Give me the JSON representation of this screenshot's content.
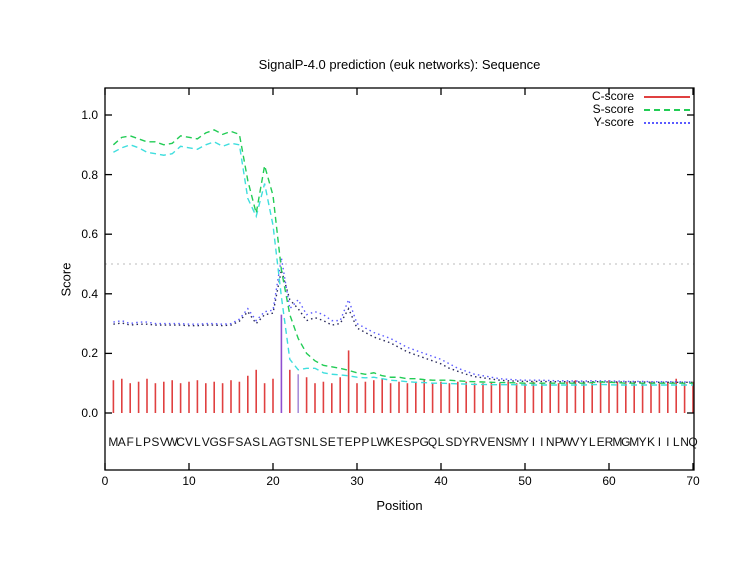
{
  "header": {
    "title": "SignalP-4.0 prediction (euk networks): Sequence"
  },
  "axes": {
    "xlabel": "Position",
    "ylabel": "Score",
    "xticks": [
      0,
      10,
      20,
      30,
      40,
      50,
      60,
      70
    ],
    "yticks": [
      "0.0",
      "0.2",
      "0.4",
      "0.6",
      "0.8",
      "1.0"
    ]
  },
  "legend": {
    "entries": [
      {
        "label": "C-score",
        "color": "#e04040",
        "line_style": "solid"
      },
      {
        "label": "S-score",
        "color": "#22cc55",
        "line_style": "dashed"
      },
      {
        "label": "Y-score",
        "color": "#5b5bff",
        "line_style": "dotted"
      }
    ]
  },
  "colors": {
    "c_score": "#e04040",
    "s_score_green": "#22cc55",
    "s_score_cyan": "#3fdede",
    "y_score_blue": "#5b5bff",
    "y_score_navy": "#28285a",
    "threshold_line": "#bbbbbb",
    "axis": "#000000"
  },
  "chart_data": {
    "type": "line",
    "title": "SignalP-4.0 prediction (euk networks): Sequence",
    "xlabel": "Position",
    "ylabel": "Score",
    "xlim": [
      0,
      70
    ],
    "ylim": [
      0.0,
      1.0
    ],
    "threshold": 0.5,
    "grid": false,
    "legend_position": "top-right",
    "sequence": "MAFLPSVWCVLVGSFSASLAGTSNLSETEPPLWKESPGQLSDYRVENSMYIINPWVYLERMGMYKIILNQ",
    "positions_start": 1,
    "series": [
      {
        "name": "C-score",
        "style": "impulse",
        "color": "#e04040",
        "color_overrides": {
          "21": "#8f4fd0",
          "23": "#a98fd9"
        },
        "values": [
          0.11,
          0.115,
          0.1,
          0.105,
          0.115,
          0.1,
          0.105,
          0.11,
          0.1,
          0.105,
          0.11,
          0.1,
          0.105,
          0.1,
          0.11,
          0.105,
          0.125,
          0.145,
          0.1,
          0.115,
          0.33,
          0.145,
          0.13,
          0.12,
          0.1,
          0.105,
          0.1,
          0.12,
          0.21,
          0.1,
          0.105,
          0.11,
          0.115,
          0.1,
          0.105,
          0.1,
          0.105,
          0.11,
          0.1,
          0.105,
          0.1,
          0.105,
          0.105,
          0.1,
          0.1,
          0.105,
          0.1,
          0.105,
          0.1,
          0.1,
          0.105,
          0.1,
          0.105,
          0.1,
          0.105,
          0.11,
          0.105,
          0.1,
          0.105,
          0.11,
          0.105,
          0.1,
          0.105,
          0.1,
          0.105,
          0.1,
          0.105,
          0.115,
          0.1,
          0.105
        ]
      },
      {
        "name": "S-score",
        "style": "dashed",
        "color": "#22cc55",
        "values": [
          0.9,
          0.925,
          0.93,
          0.92,
          0.91,
          0.91,
          0.9,
          0.905,
          0.93,
          0.925,
          0.92,
          0.94,
          0.95,
          0.935,
          0.945,
          0.935,
          0.78,
          0.67,
          0.83,
          0.73,
          0.48,
          0.33,
          0.25,
          0.2,
          0.175,
          0.16,
          0.155,
          0.15,
          0.143,
          0.135,
          0.13,
          0.135,
          0.125,
          0.12,
          0.12,
          0.115,
          0.115,
          0.112,
          0.11,
          0.11,
          0.11,
          0.108,
          0.106,
          0.105,
          0.104,
          0.103,
          0.102,
          0.102,
          0.101,
          0.1,
          0.1,
          0.1,
          0.1,
          0.1,
          0.1,
          0.1,
          0.1,
          0.102,
          0.104,
          0.103,
          0.102,
          0.1,
          0.1,
          0.1,
          0.1,
          0.1,
          0.1,
          0.1,
          0.1,
          0.1
        ]
      },
      {
        "name": "S-score-alt",
        "style": "dashed",
        "color": "#3fdede",
        "values": [
          0.875,
          0.89,
          0.9,
          0.89,
          0.875,
          0.87,
          0.865,
          0.87,
          0.895,
          0.89,
          0.885,
          0.9,
          0.91,
          0.895,
          0.905,
          0.9,
          0.72,
          0.66,
          0.77,
          0.63,
          0.39,
          0.18,
          0.145,
          0.15,
          0.15,
          0.135,
          0.13,
          0.128,
          0.125,
          0.12,
          0.118,
          0.12,
          0.115,
          0.11,
          0.108,
          0.105,
          0.103,
          0.102,
          0.1,
          0.1,
          0.099,
          0.098,
          0.097,
          0.096,
          0.096,
          0.095,
          0.095,
          0.095,
          0.095,
          0.094,
          0.094,
          0.094,
          0.094,
          0.094,
          0.094,
          0.094,
          0.094,
          0.095,
          0.096,
          0.095,
          0.094,
          0.094,
          0.094,
          0.094,
          0.094,
          0.094,
          0.094,
          0.094,
          0.094,
          0.094
        ]
      },
      {
        "name": "Y-score",
        "style": "dotted",
        "color": "#5b5bff",
        "values": [
          0.305,
          0.31,
          0.3,
          0.305,
          0.305,
          0.3,
          0.3,
          0.3,
          0.3,
          0.298,
          0.298,
          0.3,
          0.3,
          0.298,
          0.3,
          0.315,
          0.35,
          0.31,
          0.34,
          0.345,
          0.52,
          0.35,
          0.38,
          0.33,
          0.34,
          0.33,
          0.31,
          0.31,
          0.38,
          0.3,
          0.285,
          0.27,
          0.26,
          0.25,
          0.235,
          0.22,
          0.21,
          0.2,
          0.19,
          0.18,
          0.165,
          0.15,
          0.14,
          0.13,
          0.125,
          0.12,
          0.115,
          0.113,
          0.111,
          0.11,
          0.11,
          0.11,
          0.109,
          0.108,
          0.108,
          0.107,
          0.107,
          0.108,
          0.108,
          0.107,
          0.107,
          0.106,
          0.106,
          0.106,
          0.105,
          0.105,
          0.105,
          0.105,
          0.104,
          0.104
        ]
      },
      {
        "name": "Y-score-alt",
        "style": "dotted",
        "color": "#28285a",
        "values": [
          0.298,
          0.302,
          0.295,
          0.298,
          0.298,
          0.295,
          0.295,
          0.295,
          0.295,
          0.293,
          0.293,
          0.295,
          0.295,
          0.293,
          0.295,
          0.308,
          0.34,
          0.3,
          0.33,
          0.335,
          0.48,
          0.38,
          0.35,
          0.31,
          0.32,
          0.31,
          0.295,
          0.3,
          0.35,
          0.285,
          0.27,
          0.255,
          0.245,
          0.235,
          0.22,
          0.205,
          0.195,
          0.185,
          0.175,
          0.165,
          0.15,
          0.14,
          0.13,
          0.122,
          0.118,
          0.114,
          0.11,
          0.108,
          0.107,
          0.106,
          0.106,
          0.106,
          0.105,
          0.105,
          0.105,
          0.104,
          0.104,
          0.105,
          0.105,
          0.104,
          0.104,
          0.104,
          0.104,
          0.104,
          0.103,
          0.103,
          0.103,
          0.103,
          0.103,
          0.103
        ]
      }
    ]
  }
}
